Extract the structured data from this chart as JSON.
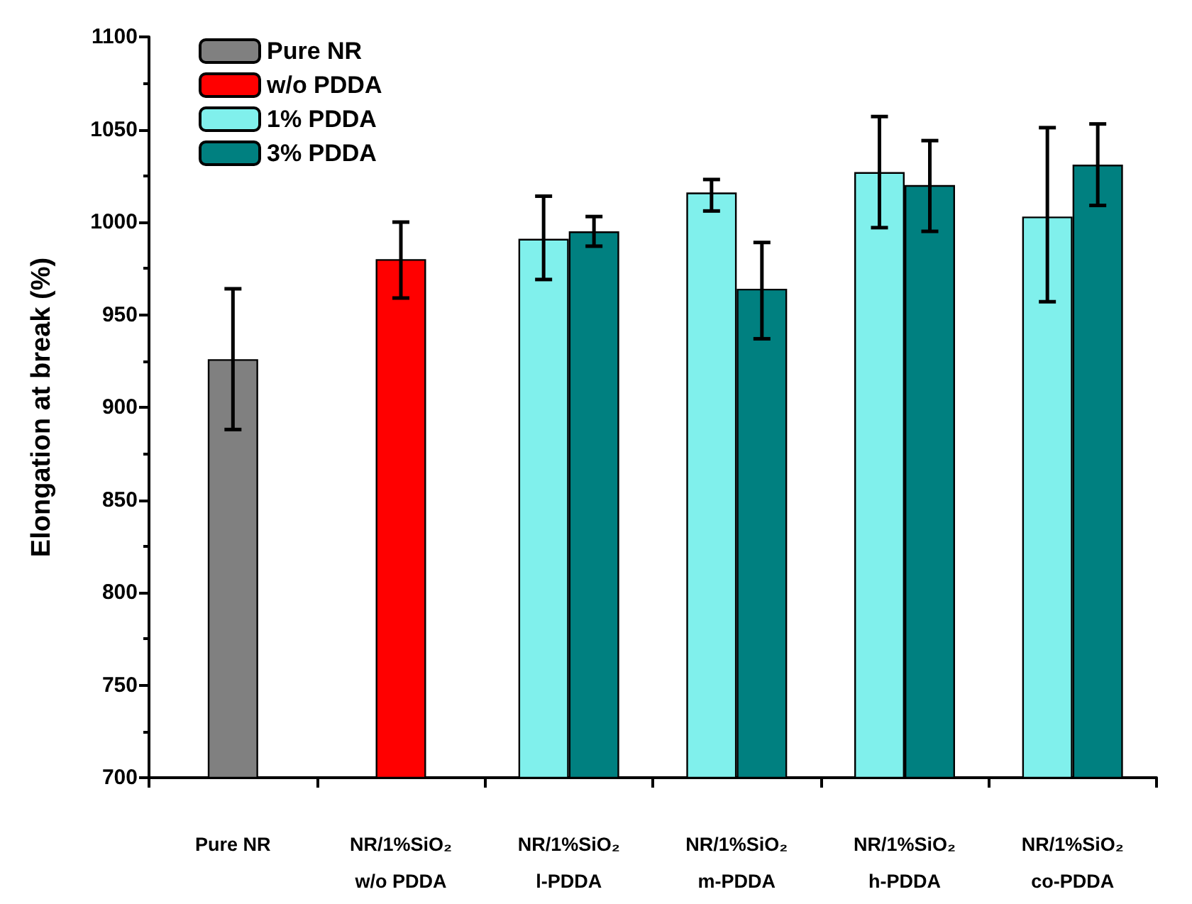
{
  "chart_data": {
    "type": "bar",
    "ylabel": "Elongation at break (%)",
    "categories": [
      "Pure NR",
      "NR/1%SiO₂\nw/o PDDA",
      "NR/1%SiO₂\nl-PDDA",
      "NR/1%SiO₂\nm-PDDA",
      "NR/1%SiO₂\nh-PDDA",
      "NR/1%SiO₂\nco-PDDA"
    ],
    "series": [
      {
        "name": "Pure NR",
        "color": "#808080",
        "values": [
          926,
          null,
          null,
          null,
          null,
          null
        ],
        "errors": [
          [
            888,
            964
          ],
          null,
          null,
          null,
          null,
          null
        ]
      },
      {
        "name": "w/o PDDA",
        "color": "#ff0000",
        "values": [
          null,
          980,
          null,
          null,
          null,
          null
        ],
        "errors": [
          null,
          [
            959,
            1000
          ],
          null,
          null,
          null,
          null
        ]
      },
      {
        "name": "1% PDDA",
        "color": "#80f0ec",
        "values": [
          null,
          null,
          991,
          1016,
          1027,
          1003
        ],
        "errors": [
          null,
          null,
          [
            969,
            1014
          ],
          [
            1006,
            1023
          ],
          [
            997,
            1057
          ],
          [
            957,
            1051
          ]
        ]
      },
      {
        "name": "3% PDDA",
        "color": "#008080",
        "values": [
          null,
          null,
          995,
          964,
          1020,
          1031
        ],
        "errors": [
          null,
          null,
          [
            987,
            1003
          ],
          [
            937,
            989
          ],
          [
            995,
            1044
          ],
          [
            1009,
            1053
          ]
        ]
      }
    ],
    "ylim": [
      700,
      1100
    ],
    "yticks": [
      700,
      750,
      800,
      850,
      900,
      950,
      1000,
      1050,
      1100
    ],
    "grid": false,
    "legend": "top left"
  }
}
